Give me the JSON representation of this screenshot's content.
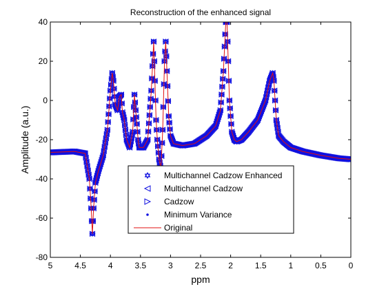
{
  "chart_data": {
    "type": "line",
    "title": "Reconstruction of the enhanced signal",
    "xlabel": "ppm",
    "ylabel": "Amplitude (a.u.)",
    "xlim": [
      5,
      0
    ],
    "ylim": [
      -80,
      40
    ],
    "x_reversed": true,
    "xticks": [
      5,
      4.5,
      4,
      3.5,
      3,
      2.5,
      2,
      1.5,
      1,
      0.5,
      0
    ],
    "xtick_labels": [
      "5",
      "4.5",
      "4",
      "3.5",
      "3",
      "2.5",
      "2",
      "1.5",
      "1",
      "0.5",
      "0"
    ],
    "yticks": [
      -80,
      -60,
      -40,
      -20,
      0,
      20,
      40
    ],
    "ytick_labels": [
      "-80",
      "-60",
      "-40",
      "-20",
      "0",
      "20",
      "40"
    ],
    "grid": false,
    "legend_position": "lower-center",
    "x": [
      5.0,
      4.6,
      4.42,
      4.35,
      4.32,
      4.3,
      4.28,
      4.25,
      4.2,
      4.12,
      4.05,
      4.0,
      3.97,
      3.95,
      3.92,
      3.88,
      3.85,
      3.82,
      3.8,
      3.77,
      3.73,
      3.68,
      3.63,
      3.6,
      3.58,
      3.56,
      3.54,
      3.52,
      3.45,
      3.38,
      3.32,
      3.28,
      3.26,
      3.24,
      3.22,
      3.19,
      3.16,
      3.13,
      3.1,
      3.08,
      3.06,
      3.03,
      3.0,
      2.95,
      2.8,
      2.6,
      2.4,
      2.25,
      2.17,
      2.12,
      2.08,
      2.06,
      2.04,
      2.02,
      1.98,
      1.94,
      1.9,
      1.82,
      1.7,
      1.55,
      1.42,
      1.35,
      1.3,
      1.28,
      1.26,
      1.24,
      1.2,
      1.12,
      1.0,
      0.8,
      0.5,
      0.2,
      0.0
    ],
    "series": [
      {
        "name": "Multichannel Cadzow Enhanced",
        "marker": "hexagram",
        "color": "#1010e0",
        "y": [
          -26.5,
          -26,
          -27,
          -40,
          -55,
          -68,
          -55,
          -42,
          -36,
          -28,
          -15,
          5,
          14,
          10,
          -2,
          -5,
          2,
          3,
          -6,
          -10,
          -20,
          -24,
          -16,
          3,
          -5,
          -12,
          -20,
          -24,
          -24,
          -20,
          5,
          30,
          10,
          -10,
          -20,
          -30,
          -35,
          -15,
          20,
          30,
          15,
          -8,
          -18,
          -22,
          -23,
          -22,
          -18,
          -13,
          -5,
          15,
          40,
          40,
          20,
          0,
          -16,
          -20,
          -21,
          -20,
          -16,
          -10,
          0,
          10,
          14,
          10,
          0,
          -10,
          -18,
          -21,
          -24,
          -26,
          -28,
          -29.5,
          -30
        ]
      },
      {
        "name": "Multichannel Cadzow",
        "marker": "triangle-left",
        "color": "#1010e0",
        "y": [
          -26.5,
          -26,
          -27,
          -40,
          -55,
          -68,
          -55,
          -42,
          -36,
          -28,
          -15,
          5,
          14,
          10,
          -2,
          -5,
          2,
          3,
          -6,
          -10,
          -20,
          -24,
          -16,
          3,
          -5,
          -12,
          -20,
          -24,
          -24,
          -20,
          5,
          30,
          10,
          -10,
          -20,
          -30,
          -35,
          -15,
          20,
          30,
          15,
          -8,
          -18,
          -22,
          -23,
          -22,
          -18,
          -13,
          -5,
          15,
          40,
          40,
          20,
          0,
          -16,
          -20,
          -21,
          -20,
          -16,
          -10,
          0,
          10,
          14,
          10,
          0,
          -10,
          -18,
          -21,
          -24,
          -26,
          -28,
          -29.5,
          -30
        ]
      },
      {
        "name": "Cadzow",
        "marker": "triangle-right",
        "color": "#1010e0",
        "y": [
          -26.5,
          -26,
          -27,
          -40,
          -55,
          -68,
          -55,
          -42,
          -36,
          -28,
          -15,
          5,
          14,
          10,
          -2,
          -5,
          2,
          3,
          -6,
          -10,
          -20,
          -24,
          -16,
          3,
          -5,
          -12,
          -20,
          -24,
          -24,
          -20,
          5,
          30,
          10,
          -10,
          -20,
          -30,
          -35,
          -15,
          20,
          30,
          15,
          -8,
          -18,
          -22,
          -23,
          -22,
          -18,
          -13,
          -5,
          15,
          40,
          40,
          20,
          0,
          -16,
          -20,
          -21,
          -20,
          -16,
          -10,
          0,
          10,
          14,
          10,
          0,
          -10,
          -18,
          -21,
          -24,
          -26,
          -28,
          -29.5,
          -30
        ]
      },
      {
        "name": "Minimum Variance",
        "marker": "dot",
        "color": "#1010e0",
        "y": [
          -26.5,
          -26,
          -27,
          -40,
          -55,
          -68,
          -55,
          -42,
          -36,
          -28,
          -15,
          5,
          14,
          10,
          -2,
          -5,
          2,
          3,
          -6,
          -10,
          -20,
          -24,
          -16,
          3,
          -5,
          -12,
          -20,
          -24,
          -24,
          -20,
          5,
          30,
          10,
          -10,
          -20,
          -30,
          -35,
          -15,
          20,
          30,
          15,
          -8,
          -18,
          -22,
          -23,
          -22,
          -18,
          -13,
          -5,
          15,
          40,
          40,
          20,
          0,
          -16,
          -20,
          -21,
          -20,
          -16,
          -10,
          0,
          10,
          14,
          10,
          0,
          -10,
          -18,
          -21,
          -24,
          -26,
          -28,
          -29.5,
          -30
        ]
      },
      {
        "name": "Original",
        "marker": "line",
        "color": "#e01010",
        "y": [
          -26.5,
          -26,
          -27,
          -40,
          -55,
          -68,
          -55,
          -42,
          -36,
          -28,
          -15,
          5,
          14,
          10,
          -2,
          -5,
          2,
          3,
          -6,
          -10,
          -20,
          -24,
          -16,
          3,
          -5,
          -12,
          -20,
          -24,
          -24,
          -20,
          5,
          30,
          10,
          -10,
          -20,
          -30,
          -35,
          -15,
          20,
          30,
          15,
          -8,
          -18,
          -22,
          -23,
          -22,
          -18,
          -13,
          -5,
          15,
          40,
          40,
          20,
          0,
          -16,
          -20,
          -21,
          -20,
          -16,
          -10,
          0,
          10,
          14,
          10,
          0,
          -10,
          -18,
          -21,
          -24,
          -26,
          -28,
          -29.5,
          -30
        ]
      }
    ]
  }
}
